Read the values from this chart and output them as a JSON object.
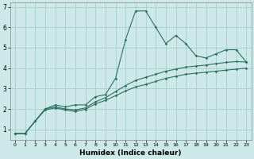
{
  "title": "",
  "xlabel": "Humidex (Indice chaleur)",
  "bg_color": "#cce8e8",
  "grid_color": "#aacccc",
  "line_color": "#2d7060",
  "xlim": [
    -0.5,
    23.5
  ],
  "ylim": [
    0.5,
    7.2
  ],
  "yticks": [
    1,
    2,
    3,
    4,
    5,
    6,
    7
  ],
  "xticks": [
    0,
    1,
    2,
    3,
    4,
    5,
    6,
    7,
    8,
    9,
    10,
    11,
    12,
    13,
    14,
    15,
    16,
    17,
    18,
    19,
    20,
    21,
    22,
    23
  ],
  "series1": [
    [
      0,
      0.8
    ],
    [
      1,
      0.8
    ],
    [
      2,
      1.4
    ],
    [
      3,
      2.0
    ],
    [
      4,
      2.2
    ],
    [
      5,
      2.1
    ],
    [
      6,
      2.2
    ],
    [
      7,
      2.2
    ],
    [
      8,
      2.6
    ],
    [
      9,
      2.7
    ],
    [
      10,
      3.5
    ],
    [
      11,
      5.4
    ],
    [
      12,
      6.8
    ],
    [
      13,
      6.8
    ],
    [
      14,
      6.0
    ],
    [
      15,
      5.2
    ],
    [
      16,
      5.6
    ],
    [
      17,
      5.2
    ],
    [
      18,
      4.6
    ],
    [
      19,
      4.5
    ],
    [
      20,
      4.7
    ],
    [
      21,
      4.9
    ],
    [
      22,
      4.9
    ],
    [
      23,
      4.3
    ]
  ],
  "series2": [
    [
      0,
      0.8
    ],
    [
      1,
      0.8
    ],
    [
      2,
      1.4
    ],
    [
      3,
      2.0
    ],
    [
      4,
      2.1
    ],
    [
      5,
      2.0
    ],
    [
      6,
      1.95
    ],
    [
      7,
      2.05
    ],
    [
      8,
      2.35
    ],
    [
      9,
      2.55
    ],
    [
      10,
      2.85
    ],
    [
      11,
      3.15
    ],
    [
      12,
      3.4
    ],
    [
      13,
      3.55
    ],
    [
      14,
      3.7
    ],
    [
      15,
      3.85
    ],
    [
      16,
      3.95
    ],
    [
      17,
      4.05
    ],
    [
      18,
      4.1
    ],
    [
      19,
      4.15
    ],
    [
      20,
      4.22
    ],
    [
      21,
      4.28
    ],
    [
      22,
      4.32
    ],
    [
      23,
      4.3
    ]
  ],
  "series3": [
    [
      0,
      0.8
    ],
    [
      1,
      0.8
    ],
    [
      2,
      1.4
    ],
    [
      3,
      1.95
    ],
    [
      4,
      2.05
    ],
    [
      5,
      1.95
    ],
    [
      6,
      1.88
    ],
    [
      7,
      1.98
    ],
    [
      8,
      2.25
    ],
    [
      9,
      2.42
    ],
    [
      10,
      2.65
    ],
    [
      11,
      2.88
    ],
    [
      12,
      3.08
    ],
    [
      13,
      3.2
    ],
    [
      14,
      3.35
    ],
    [
      15,
      3.5
    ],
    [
      16,
      3.6
    ],
    [
      17,
      3.7
    ],
    [
      18,
      3.75
    ],
    [
      19,
      3.8
    ],
    [
      20,
      3.85
    ],
    [
      21,
      3.9
    ],
    [
      22,
      3.95
    ],
    [
      23,
      4.0
    ]
  ]
}
